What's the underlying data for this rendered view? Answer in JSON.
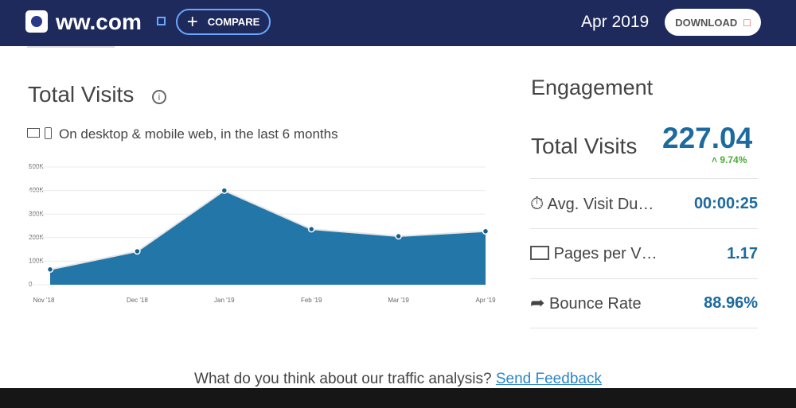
{
  "header": {
    "site": "ww.com",
    "compare": "COMPARE",
    "date": "Apr 2019",
    "download": "DOWNLOAD"
  },
  "chart_data": {
    "type": "area",
    "title": "Total Visits",
    "subtitle": "On desktop & mobile web, in the last 6 months",
    "categories": [
      "Nov '18",
      "Dec '18",
      "Jan '19",
      "Feb '19",
      "Mar '19",
      "Apr '19"
    ],
    "values": [
      65000,
      142000,
      400000,
      236000,
      206000,
      227000
    ],
    "color": "#2376a8",
    "ylim": [
      0,
      500000
    ],
    "yticks": [
      0,
      {
        "value": 100000,
        "label": "100K"
      },
      {
        "value": 200000,
        "label": "200K"
      },
      {
        "value": 300000,
        "label": "300K"
      },
      {
        "value": 400000,
        "label": "400K"
      },
      {
        "value": 500000,
        "label": "500K"
      }
    ],
    "grid": true
  },
  "engagement": {
    "title": "Engagement",
    "total_label": "Total Visits",
    "total_value": "227.04",
    "change": "9.74%",
    "rows": [
      [
        "Avg. Visit Du…",
        "00:00:25"
      ],
      [
        "Pages per V…",
        "1.17"
      ],
      [
        "Bounce Rate",
        "88.96%"
      ]
    ]
  },
  "feedback": {
    "question": "What do you think about our traffic analysis?",
    "link": "Send Feedback"
  }
}
